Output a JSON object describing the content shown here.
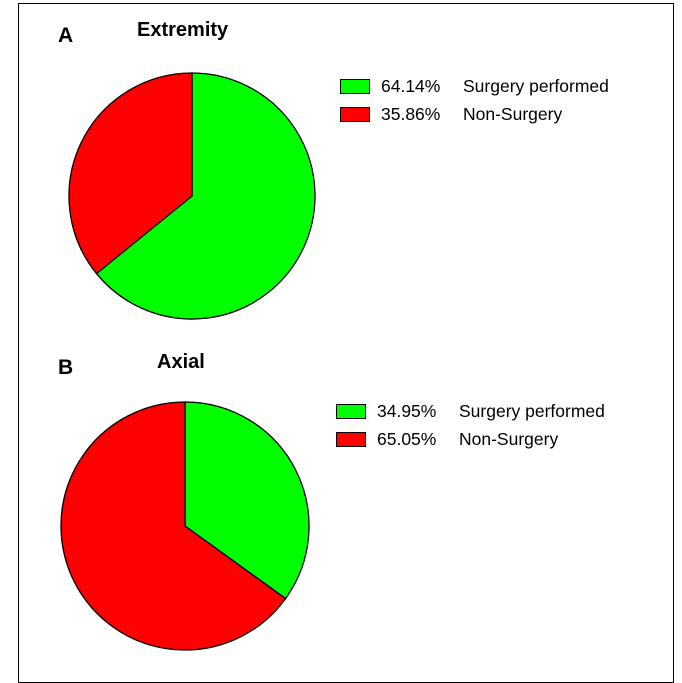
{
  "chart_data": [
    {
      "type": "pie",
      "panel": "A",
      "title": "Extremity",
      "slices": [
        {
          "label": "Surgery performed",
          "value": 64.14,
          "display": "64.14%",
          "color": "#00ff00"
        },
        {
          "label": "Non-Surgery",
          "value": 35.86,
          "display": "35.86%",
          "color": "#ff0000"
        }
      ],
      "start_angle_deg": 0,
      "direction": "clockwise",
      "legend_position": "right"
    },
    {
      "type": "pie",
      "panel": "B",
      "title": "Axial",
      "slices": [
        {
          "label": "Surgery performed",
          "value": 34.95,
          "display": "34.95%",
          "color": "#00ff00"
        },
        {
          "label": "Non-Surgery",
          "value": 65.05,
          "display": "65.05%",
          "color": "#ff0000"
        }
      ],
      "start_angle_deg": 0,
      "direction": "clockwise",
      "legend_position": "right"
    }
  ]
}
